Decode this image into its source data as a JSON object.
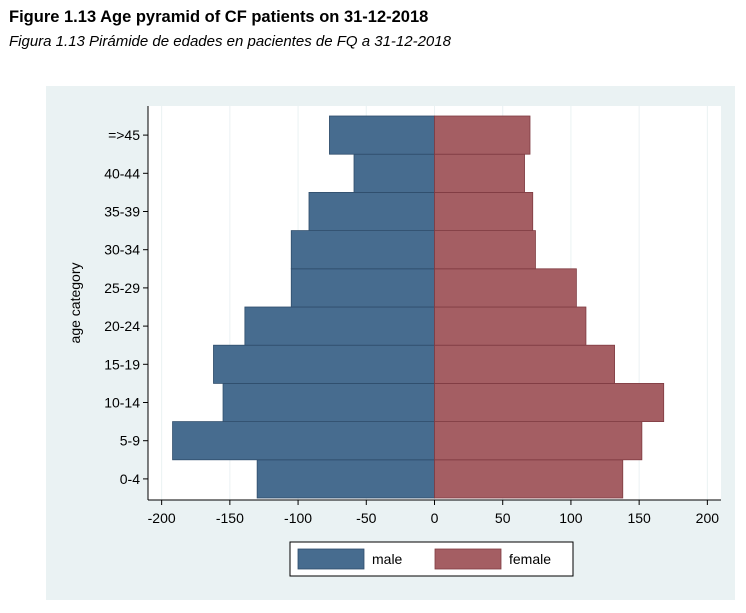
{
  "figure": {
    "title": "Figure 1.13 Age pyramid of CF patients on 31-12-2018",
    "subtitle": "Figura 1.13 Pirámide de edades en pacientes de FQ a 31-12-2018"
  },
  "chart_data": {
    "type": "bar",
    "orientation": "horizontal-pyramid",
    "ylabel": "age category",
    "xlabel": "",
    "categories": [
      "0-4",
      "5-9",
      "10-14",
      "15-19",
      "20-24",
      "25-29",
      "30-34",
      "35-39",
      "40-44",
      "=>45"
    ],
    "series": [
      {
        "name": "male",
        "values": [
          -130,
          -192,
          -155,
          -162,
          -139,
          -105,
          -105,
          -92,
          -59,
          -77
        ],
        "color": "#476c8f"
      },
      {
        "name": "female",
        "values": [
          138,
          152,
          168,
          132,
          111,
          104,
          74,
          72,
          66,
          70
        ],
        "color": "#a45e63"
      }
    ],
    "xlim": [
      -210,
      210
    ],
    "xticks": [
      -200,
      -150,
      -100,
      -50,
      0,
      50,
      100,
      150,
      200
    ],
    "xtick_labels": [
      "-200",
      "-150",
      "-100",
      "-50",
      "0",
      "50",
      "100",
      "150",
      "200"
    ],
    "grid": true,
    "legend_position": "bottom-center",
    "colors": {
      "outer_background": "#eaf2f3",
      "plot_background": "#ffffff",
      "gridline": "#eaf2f3",
      "male": "#476c8f",
      "female": "#a45e63"
    }
  }
}
